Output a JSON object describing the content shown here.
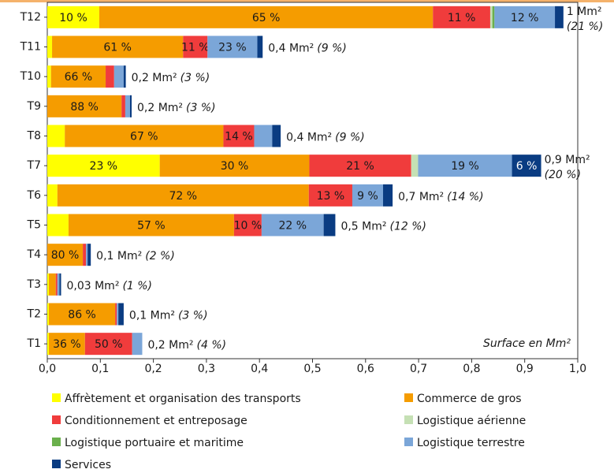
{
  "chart_data": {
    "type": "bar",
    "orientation": "horizontal",
    "stacked": true,
    "categories": [
      "T12",
      "T11",
      "T10",
      "T9",
      "T8",
      "T7",
      "T6",
      "T5",
      "T4",
      "T3",
      "T2",
      "T1"
    ],
    "annotation": "Surface en Mm²",
    "xlim": [
      0,
      1.0
    ],
    "xticks": [
      {
        "value": 0,
        "label": "0,0"
      },
      {
        "value": 0.1,
        "label": "0,1"
      },
      {
        "value": 0.2,
        "label": "0,2"
      },
      {
        "value": 0.3,
        "label": "0,3"
      },
      {
        "value": 0.4,
        "label": "0,4"
      },
      {
        "value": 0.5,
        "label": "0,5"
      },
      {
        "value": 0.6,
        "label": "0,6"
      },
      {
        "value": 0.7,
        "label": "0,7"
      },
      {
        "value": 0.8,
        "label": "0,8"
      },
      {
        "value": 0.9,
        "label": "0,9"
      },
      {
        "value": 1.0,
        "label": "1,0"
      }
    ],
    "grid": false,
    "series": [
      {
        "name": "Affrètement et organisation des transports",
        "color": "#ffff00",
        "values": [
          0.098,
          0.009,
          0.007,
          0,
          0.033,
          0.212,
          0.019,
          0.04,
          0,
          0.003,
          0.003,
          0.003
        ],
        "share_labels": [
          "10 %",
          null,
          null,
          null,
          null,
          "23 %",
          null,
          null,
          null,
          null,
          null,
          null
        ]
      },
      {
        "name": "Commerce de gros",
        "color": "#f59c00",
        "values": [
          0.629,
          0.247,
          0.103,
          0.14,
          0.299,
          0.282,
          0.474,
          0.312,
          0.067,
          0.013,
          0.125,
          0.068
        ],
        "share_labels": [
          "65 %",
          "61 %",
          "66 %",
          "88 %",
          "67 %",
          "30 %",
          "72 %",
          "57 %",
          "80 %",
          null,
          "86 %",
          "36 %"
        ]
      },
      {
        "name": "Conditionnement et entreposage",
        "color": "#f03c3c",
        "values": [
          0.108,
          0.046,
          0.016,
          0.007,
          0.058,
          0.192,
          0.082,
          0.052,
          0.006,
          0.003,
          0.003,
          0.089
        ],
        "share_labels": [
          "11 %",
          "11 %",
          null,
          null,
          "14 %",
          "21 %",
          "13 %",
          "10 %",
          null,
          null,
          null,
          "50 %"
        ]
      },
      {
        "name": "Logistique aérienne",
        "color": "#c5e0b4",
        "values": [
          0.004,
          0,
          0,
          0,
          0,
          0.013,
          0,
          0,
          0,
          0,
          0,
          0
        ],
        "share_labels": [
          null,
          null,
          null,
          null,
          null,
          null,
          null,
          null,
          null,
          null,
          null,
          null
        ]
      },
      {
        "name": "Logistique portuaire et maritime",
        "color": "#6ab04c",
        "values": [
          0.004,
          0,
          0,
          0,
          0,
          0,
          0,
          0,
          0,
          0,
          0,
          0
        ],
        "share_labels": [
          null,
          null,
          null,
          null,
          null,
          null,
          null,
          null,
          null,
          null,
          null,
          null
        ]
      },
      {
        "name": "Logistique terrestre",
        "color": "#7ba6d8",
        "values": [
          0.114,
          0.094,
          0.018,
          0.009,
          0.034,
          0.177,
          0.058,
          0.117,
          0.003,
          0.004,
          0.003,
          0.019
        ],
        "share_labels": [
          "12 %",
          "23 %",
          null,
          null,
          null,
          "19 %",
          "9 %",
          "22 %",
          null,
          null,
          null,
          null
        ]
      },
      {
        "name": "Services",
        "color": "#0a3c82",
        "values": [
          0.016,
          0.01,
          0.004,
          0.003,
          0.016,
          0.055,
          0.018,
          0.022,
          0.006,
          0.003,
          0.01,
          0
        ],
        "share_labels": [
          null,
          null,
          null,
          null,
          null,
          "6 %",
          null,
          null,
          null,
          null,
          null,
          null
        ]
      }
    ],
    "total_labels": [
      "1 Mm²",
      "0,4 Mm²",
      "0,2 Mm²",
      "0,2 Mm²",
      "0,4 Mm²",
      "0,9 Mm²",
      "0,7 Mm²",
      "0,5 Mm²",
      "0,1 Mm²",
      "0,03 Mm²",
      "0,1 Mm²",
      "0,2 Mm²"
    ],
    "total_shares": [
      "(21 %)",
      "(9 %)",
      "(3 %)",
      "(3 %)",
      "(9 %)",
      "(20 %)",
      "(14 %)",
      "(12 %)",
      "(2 %)",
      "(1 %)",
      "(3 %)",
      "(4 %)"
    ]
  }
}
